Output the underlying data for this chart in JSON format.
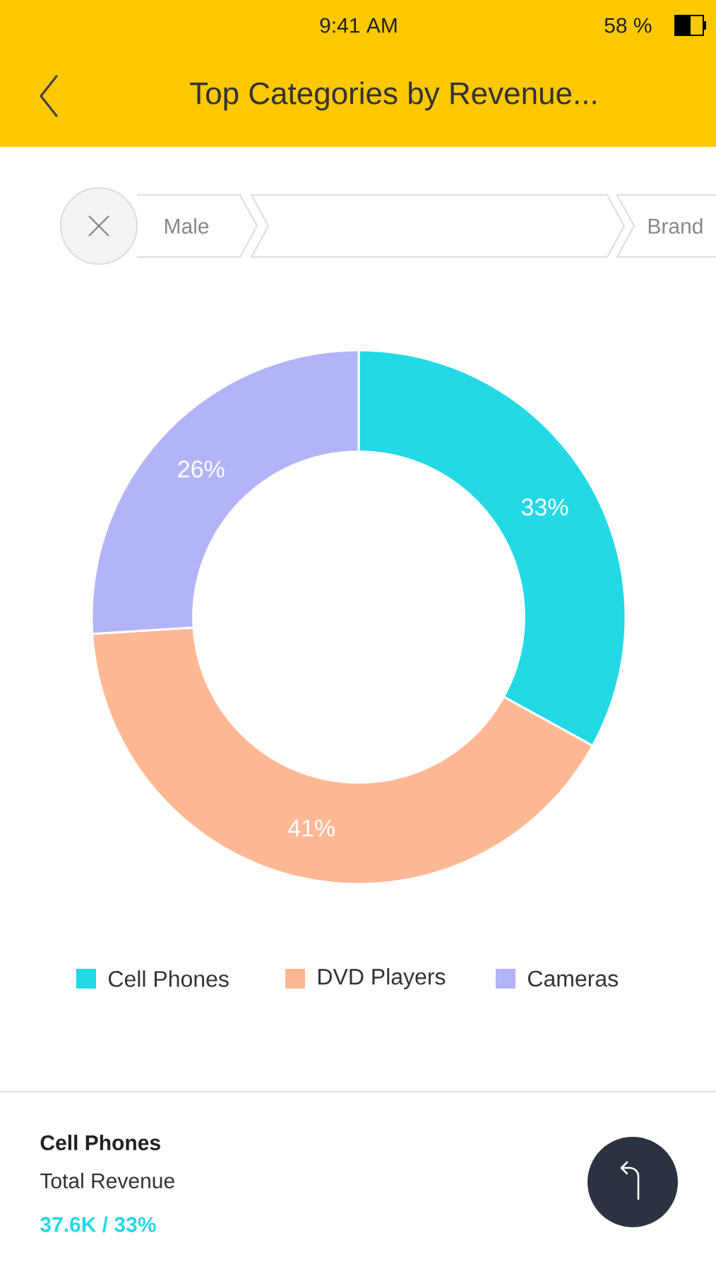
{
  "chart_data": {
    "type": "donut",
    "title": "Top Categories by Revenue...",
    "categories": [
      "Cell Phones",
      "DVD Players",
      "Cameras"
    ],
    "values": [
      33,
      41,
      26
    ],
    "colors": [
      "#22d9e5",
      "#ffb894",
      "#b3b3f7"
    ],
    "value_labels": [
      "33%",
      "41%",
      "26%"
    ],
    "legend": "bottom",
    "annotations": [
      "9:41 AM",
      "58 %",
      "Male",
      "Brand",
      "Cell Phones",
      "Total Revenue",
      "37.6K / 33%"
    ]
  }
}
